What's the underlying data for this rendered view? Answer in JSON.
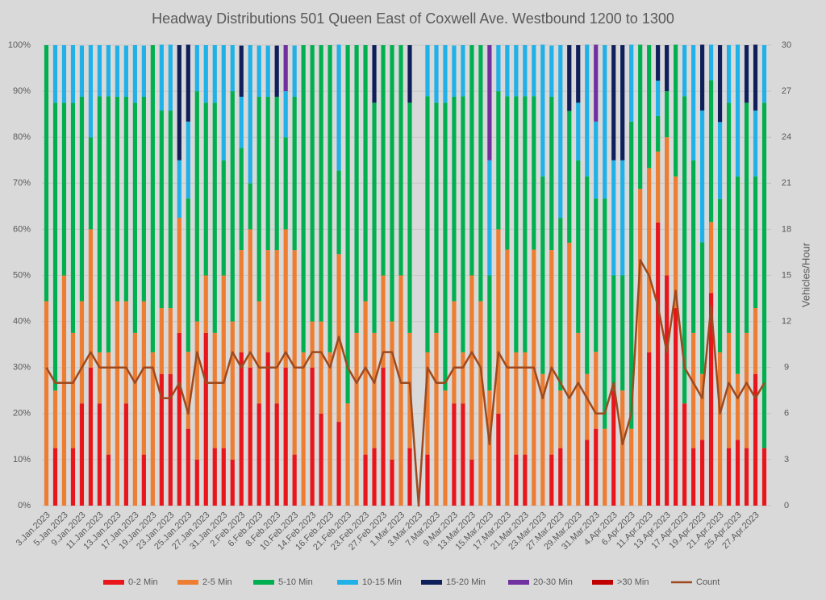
{
  "chart_data": {
    "type": "stacked_bar_line",
    "title": "Headway Distributions 501 Queen  East of Coxwell Ave. Westbound 1200 to 1300",
    "y2_label": "Vehicles/Hour",
    "categories": [
      "3.Jan.2023",
      null,
      "5.Jan.2023",
      null,
      "9.Jan.2023",
      null,
      "11.Jan.2023",
      null,
      "13.Jan.2023",
      null,
      "17.Jan.2023",
      null,
      "19.Jan.2023",
      null,
      "23.Jan.2023",
      null,
      "25.Jan.2023",
      null,
      "27.Jan.2023",
      null,
      "31.Jan.2023",
      null,
      "2.Feb.2023",
      null,
      "6.Feb.2023",
      null,
      "8.Feb.2023",
      null,
      "10.Feb.2023",
      null,
      "14.Feb.2023",
      null,
      "16.Feb.2023",
      null,
      "21.Feb.2023",
      null,
      "23.Feb.2023",
      null,
      "27.Feb.2023",
      null,
      "1.Mar.2023",
      null,
      "3.Mar.2023",
      null,
      "7.Mar.2023",
      null,
      "9.Mar.2023",
      null,
      "13.Mar.2023",
      null,
      "15.Mar.2023",
      null,
      "17.Mar.2023",
      null,
      "21.Mar.2023",
      null,
      "23.Mar.2023",
      null,
      "27.Mar.2023",
      null,
      "29.Mar.2023",
      null,
      "31.Mar.2023",
      null,
      "4.Apr.2023",
      null,
      "6.Apr.2023",
      null,
      "11.Apr.2023",
      null,
      "13.Apr.2023",
      null,
      "17.Apr.2023",
      null,
      "19.Apr.2023",
      null,
      "21.Apr.2023",
      null,
      "25.Apr.2023",
      null,
      "27.Apr.2023",
      null
    ],
    "series": [
      {
        "name": "0-2 Min",
        "color": "#e8161b",
        "values": [
          0,
          12.5,
          0,
          12.5,
          22.2,
          30,
          22.2,
          11.1,
          0,
          22.2,
          0,
          11.1,
          0,
          28.6,
          28.6,
          37.5,
          16.7,
          10,
          37.5,
          12.5,
          12.5,
          10,
          33.3,
          30,
          22.2,
          33.3,
          22.2,
          30,
          11.1,
          0,
          30,
          20,
          0,
          18.2,
          0,
          0,
          11.1,
          12.5,
          30,
          10,
          0,
          12.5,
          0,
          11.1,
          0,
          0,
          22.2,
          22.2,
          10,
          0,
          0,
          20,
          0,
          11.1,
          11.1,
          0,
          0,
          11.1,
          12.5,
          0,
          0,
          14.3,
          16.7,
          0,
          25,
          0,
          0,
          0,
          33.3,
          61.5,
          50,
          42.9,
          22.2,
          12.5,
          14.3,
          46.2,
          0,
          12.5,
          14.3,
          12.5,
          28.6,
          12.5
        ]
      },
      {
        "name": "2-5 Min",
        "color": "#ed7d31",
        "values": [
          44.4,
          12.5,
          50,
          25,
          22.2,
          30,
          11.1,
          22.2,
          44.4,
          22.2,
          37.5,
          33.3,
          33.3,
          14.3,
          14.3,
          25,
          16.7,
          30,
          12.5,
          25,
          37.5,
          30,
          22.2,
          30,
          22.2,
          22.2,
          33.3,
          30,
          44.4,
          33.3,
          10,
          20,
          33.3,
          36.4,
          22.2,
          37.5,
          33.3,
          25,
          20,
          30,
          50,
          25,
          0,
          22.2,
          37.5,
          25,
          22.2,
          11.1,
          40,
          44.4,
          25,
          40,
          55.6,
          22.2,
          22.2,
          55.6,
          28.6,
          44.4,
          12.5,
          57.1,
          37.5,
          14.3,
          16.7,
          16.7,
          0,
          25,
          16.7,
          68.8,
          40,
          15.4,
          30,
          28.6,
          0,
          25,
          14.3,
          15.4,
          33.3,
          25,
          14.3,
          25,
          14.3,
          0
        ]
      },
      {
        "name": "5-10 Min",
        "color": "#00b050",
        "values": [
          55.6,
          62.5,
          37.5,
          50,
          44.4,
          20,
          55.6,
          55.6,
          44.4,
          44.4,
          50,
          44.4,
          66.7,
          42.9,
          42.9,
          0,
          33.3,
          50,
          37.5,
          50,
          25,
          50,
          22.2,
          10,
          44.4,
          33.3,
          33.3,
          20,
          33.3,
          66.7,
          60,
          60,
          66.7,
          18.2,
          77.8,
          62.5,
          55.6,
          50,
          50,
          60,
          50,
          50,
          0,
          55.6,
          50,
          62.5,
          44.4,
          55.6,
          50,
          55.6,
          25,
          30,
          33.3,
          55.6,
          55.6,
          33.3,
          42.9,
          33.3,
          37.5,
          28.6,
          37.5,
          42.9,
          33.3,
          50,
          25,
          25,
          66.7,
          31.3,
          26.7,
          7.7,
          10,
          28.6,
          66.7,
          37.5,
          28.6,
          30.8,
          33.3,
          50,
          42.9,
          50,
          28.6,
          75
        ]
      },
      {
        "name": "10-15 Min",
        "color": "#1fb1e8",
        "values": [
          0,
          12.5,
          12.5,
          12.5,
          11.1,
          20,
          11.1,
          11.1,
          11.1,
          11.1,
          12.5,
          11.1,
          0,
          14.3,
          14.3,
          12.5,
          16.7,
          10,
          12.5,
          12.5,
          25,
          10,
          11.1,
          30,
          11.1,
          11.1,
          0,
          10,
          11.1,
          0,
          0,
          0,
          0,
          27.3,
          0,
          0,
          0,
          0,
          0,
          0,
          0,
          0,
          0,
          11.1,
          12.5,
          12.5,
          11.1,
          11.1,
          0,
          0,
          25,
          10,
          11.1,
          11.1,
          11.1,
          11.1,
          28.6,
          11.1,
          37.5,
          0,
          12.5,
          28.6,
          16.7,
          33.3,
          25,
          25,
          16.7,
          0,
          0,
          7.7,
          0,
          0,
          11.1,
          25,
          28.6,
          7.7,
          16.7,
          12.5,
          28.6,
          0,
          14.3,
          12.5
        ]
      },
      {
        "name": "15-20 Min",
        "color": "#0e1f5b",
        "values": [
          0,
          0,
          0,
          0,
          0,
          0,
          0,
          0,
          0,
          0,
          0,
          0,
          0,
          0,
          0,
          25,
          16.7,
          0,
          0,
          0,
          0,
          0,
          11.1,
          0,
          0,
          0,
          11.1,
          0,
          0,
          0,
          0,
          0,
          0,
          0,
          0,
          0,
          0,
          12.5,
          0,
          0,
          0,
          12.5,
          0,
          0,
          0,
          0,
          0,
          0,
          0,
          0,
          0,
          0,
          0,
          0,
          0,
          0,
          0,
          0,
          0,
          14.3,
          12.5,
          0,
          0,
          0,
          25,
          25,
          0,
          0,
          0,
          7.7,
          10,
          0,
          0,
          0,
          14.3,
          0,
          16.7,
          0,
          0,
          12.5,
          14.3,
          0
        ]
      },
      {
        "name": "20-30 Min",
        "color": "#7030a0",
        "values": [
          0,
          0,
          0,
          0,
          0,
          0,
          0,
          0,
          0,
          0,
          0,
          0,
          0,
          0,
          0,
          0,
          0,
          0,
          0,
          0,
          0,
          0,
          0,
          0,
          0,
          0,
          0,
          10,
          0,
          0,
          0,
          0,
          0,
          0,
          0,
          0,
          0,
          0,
          0,
          0,
          0,
          0,
          0,
          0,
          0,
          0,
          0,
          0,
          0,
          0,
          25,
          0,
          0,
          0,
          0,
          0,
          0,
          0,
          0,
          0,
          0,
          0,
          16.7,
          0,
          0,
          0,
          0,
          0,
          0,
          0,
          0,
          0,
          0,
          0,
          0,
          0,
          0,
          0,
          0,
          0,
          0,
          0
        ]
      },
      {
        "name": ">30 Min",
        "color": "#c00000",
        "values": [
          0,
          0,
          0,
          0,
          0,
          0,
          0,
          0,
          0,
          0,
          0,
          0,
          0,
          0,
          0,
          0,
          0,
          0,
          0,
          0,
          0,
          0,
          0,
          0,
          0,
          0,
          0,
          0,
          0,
          0,
          0,
          0,
          0,
          0,
          0,
          0,
          0,
          0,
          0,
          0,
          0,
          0,
          0,
          0,
          0,
          0,
          0,
          0,
          0,
          0,
          0,
          0,
          0,
          0,
          0,
          0,
          0,
          0,
          0,
          0,
          0,
          0,
          0,
          0,
          0,
          0,
          0,
          0,
          0,
          0,
          0,
          0,
          0,
          0,
          0,
          0,
          0,
          0,
          0,
          0,
          0,
          0
        ]
      },
      {
        "name": "Count",
        "color": "#9e4a1e",
        "axis": "y2",
        "values": [
          9,
          8,
          8,
          8,
          9,
          10,
          9,
          9,
          9,
          9,
          8,
          9,
          9,
          7,
          7,
          8,
          6,
          10,
          8,
          8,
          8,
          10,
          9,
          10,
          9,
          9,
          9,
          10,
          9,
          9,
          10,
          10,
          9,
          11,
          9,
          8,
          9,
          8,
          10,
          10,
          8,
          8,
          0,
          9,
          8,
          8,
          9,
          9,
          10,
          9,
          4,
          10,
          9,
          9,
          9,
          9,
          7,
          9,
          8,
          7,
          8,
          7,
          6,
          6,
          8,
          4,
          6,
          16,
          15,
          13,
          10,
          14,
          9,
          8,
          7,
          13,
          6,
          8,
          7,
          8,
          7,
          8
        ]
      }
    ],
    "ylim": [
      0,
      100
    ],
    "yticks": [
      {
        "value": 0,
        "label": "0%"
      },
      {
        "value": 10,
        "label": "10%"
      },
      {
        "value": 20,
        "label": "20%"
      },
      {
        "value": 30,
        "label": "30%"
      },
      {
        "value": 40,
        "label": "40%"
      },
      {
        "value": 50,
        "label": "50%"
      },
      {
        "value": 60,
        "label": "60%"
      },
      {
        "value": 70,
        "label": "70%"
      },
      {
        "value": 80,
        "label": "80%"
      },
      {
        "value": 90,
        "label": "90%"
      },
      {
        "value": 100,
        "label": "100%"
      }
    ],
    "y2lim": [
      0,
      30
    ],
    "y2ticks": [
      0,
      3,
      6,
      9,
      12,
      15,
      18,
      21,
      24,
      27,
      30
    ],
    "grid": true,
    "legend": "bottom"
  }
}
